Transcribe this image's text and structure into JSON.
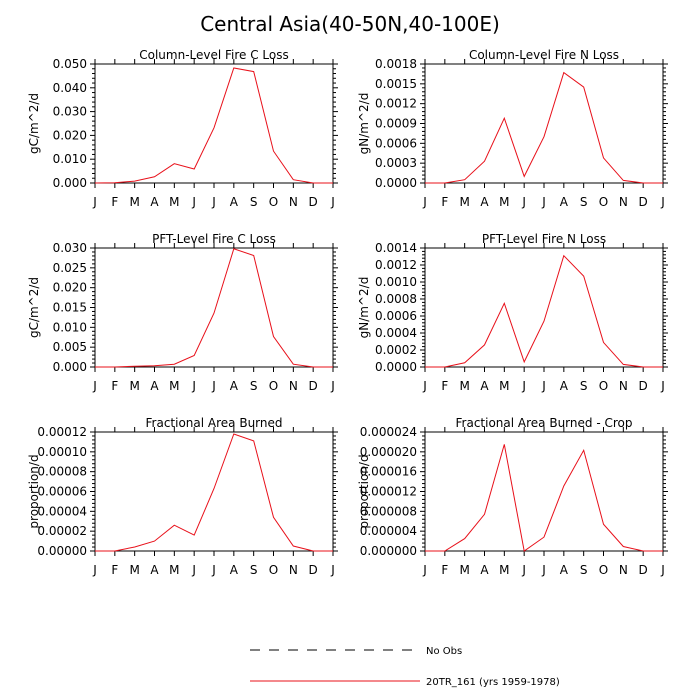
{
  "main_title": "Central Asia(40-50N,40-100E)",
  "colors": {
    "model": "#e8101a",
    "obs": "#000000"
  },
  "legend": {
    "items": [
      {
        "label": "No Obs",
        "style": "dashed",
        "color": "#000000"
      },
      {
        "label": "20TR_161 (yrs 1959-1978)",
        "style": "solid",
        "color": "#e8101a"
      }
    ]
  },
  "chart_data": [
    {
      "type": "line",
      "title": "Column-Level Fire C Loss",
      "ylabel": "gC/m^2/d",
      "xlabel": "",
      "x": [
        "J",
        "F",
        "M",
        "A",
        "M",
        "J",
        "J",
        "A",
        "S",
        "O",
        "N",
        "D",
        "J"
      ],
      "ylim": [
        0,
        0.05
      ],
      "yticks": [
        "0.000",
        "0.010",
        "0.020",
        "0.030",
        "0.040",
        "0.050"
      ],
      "series": [
        {
          "name": "20TR_161 (yrs 1959-1978)",
          "values": [
            0.0,
            0.0001,
            0.0008,
            0.0026,
            0.0081,
            0.0059,
            0.0232,
            0.0483,
            0.0468,
            0.0134,
            0.0014,
            0.0,
            0.0
          ]
        }
      ]
    },
    {
      "type": "line",
      "title": "Column-Level Fire N Loss",
      "ylabel": "gN/m^2/d",
      "xlabel": "",
      "x": [
        "J",
        "F",
        "M",
        "A",
        "M",
        "J",
        "J",
        "A",
        "S",
        "O",
        "N",
        "D",
        "J"
      ],
      "ylim": [
        0,
        0.0018
      ],
      "yticks": [
        "0.0000",
        "0.0003",
        "0.0006",
        "0.0009",
        "0.0012",
        "0.0015",
        "0.0018"
      ],
      "series": [
        {
          "name": "20TR_161 (yrs 1959-1978)",
          "values": [
            0.0,
            0.0,
            5e-05,
            0.00033,
            0.00098,
            0.0001,
            0.0007,
            0.00167,
            0.00145,
            0.00038,
            4e-05,
            0.0,
            0.0
          ]
        }
      ]
    },
    {
      "type": "line",
      "title": "PFT-Level Fire C Loss",
      "ylabel": "gC/m^2/d",
      "xlabel": "",
      "x": [
        "J",
        "F",
        "M",
        "A",
        "M",
        "J",
        "J",
        "A",
        "S",
        "O",
        "N",
        "D",
        "J"
      ],
      "ylim": [
        0,
        0.03
      ],
      "yticks": [
        "0.000",
        "0.005",
        "0.010",
        "0.015",
        "0.020",
        "0.025",
        "0.030"
      ],
      "series": [
        {
          "name": "20TR_161 (yrs 1959-1978)",
          "values": [
            0.0,
            0.0,
            0.0002,
            0.0003,
            0.0007,
            0.0029,
            0.0136,
            0.0298,
            0.0281,
            0.0077,
            0.0007,
            0.0,
            0.0
          ]
        }
      ]
    },
    {
      "type": "line",
      "title": "PFT-Level Fire N Loss",
      "ylabel": "gN/m^2/d",
      "xlabel": "",
      "x": [
        "J",
        "F",
        "M",
        "A",
        "M",
        "J",
        "J",
        "A",
        "S",
        "O",
        "N",
        "D",
        "J"
      ],
      "ylim": [
        0,
        0.0014
      ],
      "yticks": [
        "0.0000",
        "0.0002",
        "0.0004",
        "0.0006",
        "0.0008",
        "0.0010",
        "0.0012",
        "0.0014"
      ],
      "series": [
        {
          "name": "20TR_161 (yrs 1959-1978)",
          "values": [
            0.0,
            0.0,
            5e-05,
            0.00026,
            0.00075,
            6e-05,
            0.00054,
            0.00131,
            0.00107,
            0.00029,
            3e-05,
            0.0,
            0.0
          ]
        }
      ]
    },
    {
      "type": "line",
      "title": "Fractional Area Burned",
      "ylabel": "proportion/d",
      "xlabel": "",
      "x": [
        "J",
        "F",
        "M",
        "A",
        "M",
        "J",
        "J",
        "A",
        "S",
        "O",
        "N",
        "D",
        "J"
      ],
      "ylim": [
        0,
        0.00012
      ],
      "yticks": [
        "0.00000",
        "0.00002",
        "0.00004",
        "0.00006",
        "0.00008",
        "0.00010",
        "0.00012"
      ],
      "series": [
        {
          "name": "20TR_161 (yrs 1959-1978)",
          "values": [
            0.0,
            0.0,
            4e-06,
            1e-05,
            2.6e-05,
            1.6e-05,
            6.3e-05,
            0.000118,
            0.000111,
            3.4e-05,
            5e-06,
            0.0,
            0.0
          ]
        }
      ]
    },
    {
      "type": "line",
      "title": "Fractional Area Burned - Crop",
      "ylabel": "proportion/d",
      "xlabel": "",
      "x": [
        "J",
        "F",
        "M",
        "A",
        "M",
        "J",
        "J",
        "A",
        "S",
        "O",
        "N",
        "D",
        "J"
      ],
      "ylim": [
        0,
        2.4e-05
      ],
      "yticks": [
        "0.000000",
        "0.000004",
        "0.000008",
        "0.000012",
        "0.000016",
        "0.000020",
        "0.000024"
      ],
      "series": [
        {
          "name": "20TR_161 (yrs 1959-1978)",
          "values": [
            0.0,
            0.0,
            2.5e-06,
            7.4e-06,
            2.15e-05,
            0.0,
            2.8e-06,
            1.31e-05,
            2.03e-05,
            5.4e-06,
            9e-07,
            0.0,
            0.0
          ]
        }
      ]
    }
  ]
}
